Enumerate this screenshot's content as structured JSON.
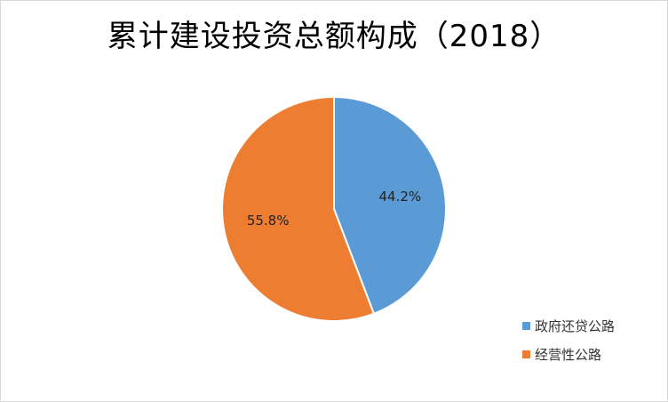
{
  "chart_data": {
    "type": "pie",
    "title": "累计建设投资总额构成（2018）",
    "series": [
      {
        "name": "政府还贷公路",
        "value": 44.2,
        "label": "44.2%",
        "color": "#5b9bd5"
      },
      {
        "name": "经营性公路",
        "value": 55.8,
        "label": "55.8%",
        "color": "#ed7d31"
      }
    ],
    "legend_position": "bottom-right",
    "start": "12 o'clock, clockwise"
  }
}
